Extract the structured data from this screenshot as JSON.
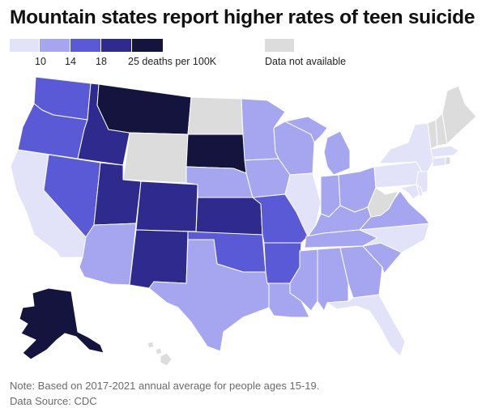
{
  "title": "Mountain states report higher rates of teen suicide",
  "legend": {
    "bins": [
      {
        "color": "#e2e2f8",
        "label": ""
      },
      {
        "color": "#a6a6f0",
        "label": "10"
      },
      {
        "color": "#5a5ad6",
        "label": "14"
      },
      {
        "color": "#2e2a8e",
        "label": "18"
      },
      {
        "color": "#15143e",
        "label": "25 deaths per 100K"
      }
    ],
    "na_color": "#dcdcdc",
    "na_label": "Data not available"
  },
  "states": [
    {
      "abbr": "WA",
      "bin": 2
    },
    {
      "abbr": "OR",
      "bin": 2
    },
    {
      "abbr": "CA",
      "bin": 0
    },
    {
      "abbr": "NV",
      "bin": 2
    },
    {
      "abbr": "ID",
      "bin": 3
    },
    {
      "abbr": "MT",
      "bin": 4
    },
    {
      "abbr": "WY",
      "bin": -1
    },
    {
      "abbr": "UT",
      "bin": 3
    },
    {
      "abbr": "AZ",
      "bin": 1
    },
    {
      "abbr": "CO",
      "bin": 3
    },
    {
      "abbr": "NM",
      "bin": 3
    },
    {
      "abbr": "ND",
      "bin": -1
    },
    {
      "abbr": "SD",
      "bin": 4
    },
    {
      "abbr": "NE",
      "bin": 1
    },
    {
      "abbr": "KS",
      "bin": 3
    },
    {
      "abbr": "OK",
      "bin": 2
    },
    {
      "abbr": "TX",
      "bin": 1
    },
    {
      "abbr": "MN",
      "bin": 1
    },
    {
      "abbr": "IA",
      "bin": 1
    },
    {
      "abbr": "MO",
      "bin": 2
    },
    {
      "abbr": "AR",
      "bin": 2
    },
    {
      "abbr": "LA",
      "bin": 1
    },
    {
      "abbr": "WI",
      "bin": 1
    },
    {
      "abbr": "IL",
      "bin": 0
    },
    {
      "abbr": "MI",
      "bin": 1
    },
    {
      "abbr": "IN",
      "bin": 1
    },
    {
      "abbr": "OH",
      "bin": 1
    },
    {
      "abbr": "KY",
      "bin": 1
    },
    {
      "abbr": "TN",
      "bin": 1
    },
    {
      "abbr": "MS",
      "bin": 1
    },
    {
      "abbr": "AL",
      "bin": 1
    },
    {
      "abbr": "GA",
      "bin": 1
    },
    {
      "abbr": "FL",
      "bin": 0
    },
    {
      "abbr": "SC",
      "bin": 1
    },
    {
      "abbr": "NC",
      "bin": 0
    },
    {
      "abbr": "VA",
      "bin": 1
    },
    {
      "abbr": "WV",
      "bin": -1
    },
    {
      "abbr": "PA",
      "bin": 0
    },
    {
      "abbr": "NY",
      "bin": 0
    },
    {
      "abbr": "NJ",
      "bin": 0
    },
    {
      "abbr": "MD",
      "bin": 0
    },
    {
      "abbr": "DE",
      "bin": 0
    },
    {
      "abbr": "CT",
      "bin": 0
    },
    {
      "abbr": "MA",
      "bin": 0
    },
    {
      "abbr": "RI",
      "bin": -1
    },
    {
      "abbr": "VT",
      "bin": -1
    },
    {
      "abbr": "NH",
      "bin": -1
    },
    {
      "abbr": "ME",
      "bin": -1
    },
    {
      "abbr": "AK",
      "bin": 4
    },
    {
      "abbr": "HI",
      "bin": -1
    }
  ],
  "footer": {
    "note": "Note: Based on 2017-2021 annual average for people ages 15-19.",
    "source": "Data Source: CDC"
  }
}
